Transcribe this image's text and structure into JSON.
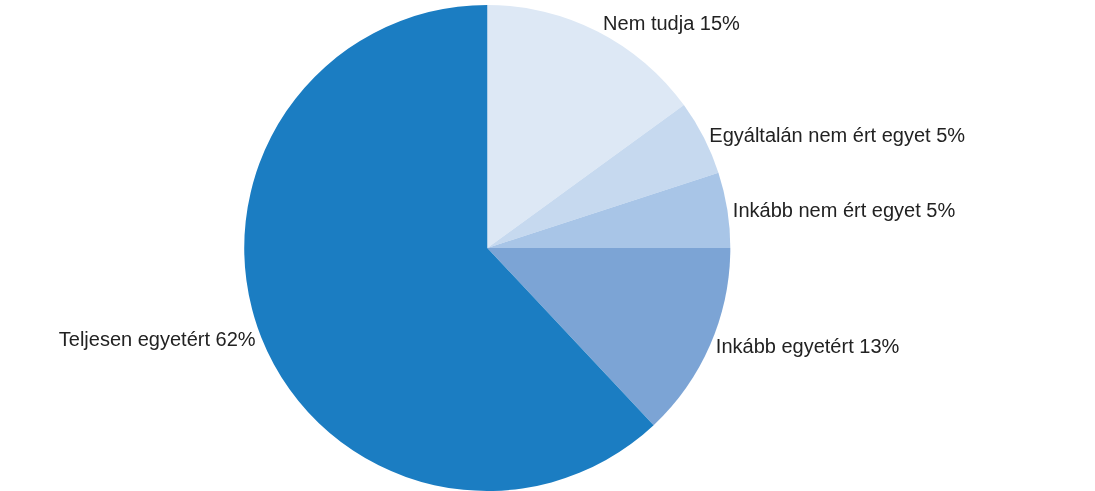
{
  "chart_data": {
    "type": "pie",
    "categories": [
      "Nem tudja",
      "Egyáltalán nem ért egyet",
      "Inkább nem ért egyet",
      "Inkább egyetért",
      "Teljesen egyetért"
    ],
    "values": [
      15,
      5,
      5,
      13,
      62
    ],
    "value_labels": [
      "15%",
      "5%",
      "5%",
      "13%",
      "62%"
    ],
    "colors": [
      "#dde8f5",
      "#c6d9ef",
      "#a8c5e7",
      "#7ca4d5",
      "#1b7dc2"
    ],
    "legend": false
  }
}
